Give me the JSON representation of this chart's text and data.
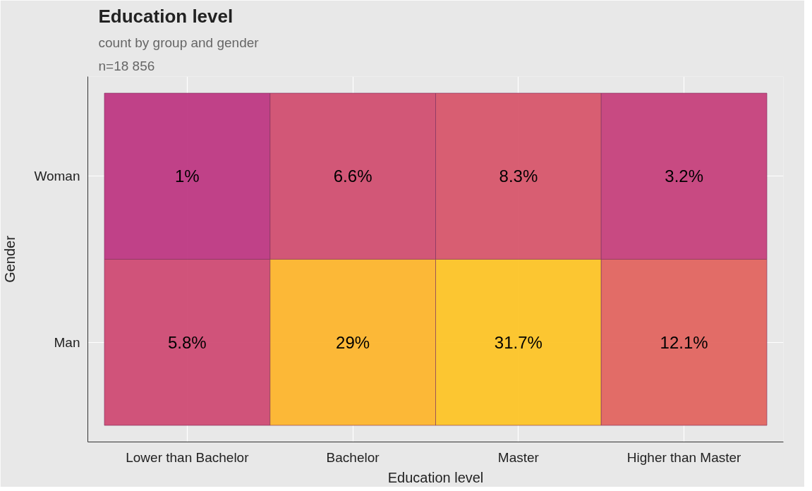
{
  "chart_data": {
    "type": "heatmap",
    "title": "Education level",
    "subtitle": "count by group and gender",
    "annotations": [
      "n=18 856"
    ],
    "xlabel": "Education level",
    "ylabel": "Gender",
    "categories": [
      "Lower than Bachelor",
      "Bachelor",
      "Master",
      "Higher than Master"
    ],
    "y_categories": [
      "Woman",
      "Man"
    ],
    "cells": [
      [
        1,
        6.6,
        8.3,
        3.2
      ],
      [
        5.8,
        29,
        31.7,
        12.1
      ]
    ],
    "cell_labels": [
      [
        "1%",
        "6.6%",
        "8.3%",
        "3.2%"
      ],
      [
        "5.8%",
        "29%",
        "31.7%",
        "12.1%"
      ]
    ],
    "grid": true
  }
}
